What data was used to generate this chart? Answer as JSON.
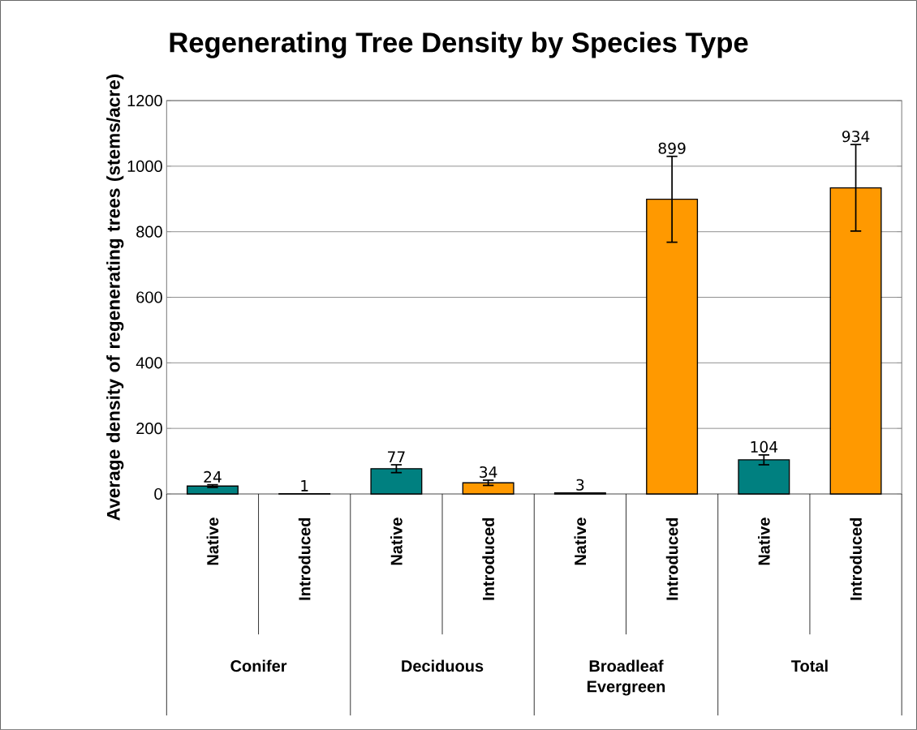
{
  "chart_data": {
    "type": "bar",
    "title": "Regenerating Tree Density by Species Type",
    "ylabel": "Average density of regenerating trees (stems/acre)",
    "categories": [
      "Native",
      "Introduced",
      "Native",
      "Introduced",
      "Native",
      "Introduced",
      "Native",
      "Introduced"
    ],
    "values": [
      24,
      1,
      77,
      34,
      3,
      899,
      104,
      934
    ],
    "errors": [
      4,
      null,
      12,
      8,
      null,
      131,
      15,
      132
    ],
    "colors": [
      "#008080",
      "#ff9900",
      "#008080",
      "#ff9900",
      "#008080",
      "#ff9900",
      "#008080",
      "#ff9900"
    ],
    "annotations": [
      "Conifer",
      "Deciduous",
      "Broadleaf Evergreen",
      "Total"
    ],
    "ylim": [
      0,
      1200
    ],
    "yticks": [
      0,
      200,
      400,
      600,
      800,
      1000,
      1200
    ],
    "grid": "y",
    "data_labels": true
  }
}
